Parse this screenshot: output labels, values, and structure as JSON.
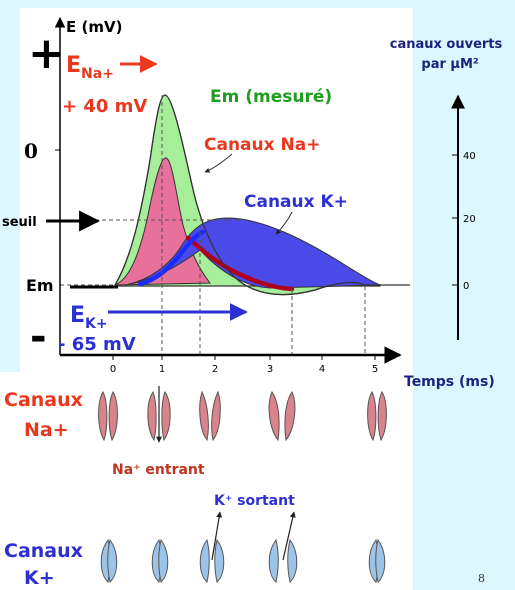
{
  "colors": {
    "background": "#dcf7fd",
    "na_label": "#e8391f",
    "k_label": "#2c2fd1",
    "em_label": "#1f9d1f",
    "na_area": "#e7719b",
    "k_area": "#4a4ae8",
    "em_area": "#a6ee9a",
    "na_channel": "#d9848d",
    "k_channel": "#9cc4e8"
  },
  "left_axis": {
    "title": "E (mV)",
    "plus_sign": "+",
    "minus_sign": "-",
    "zero_label": "0"
  },
  "labels": {
    "e_na_main": "E",
    "e_na_sub": "Na+",
    "plus_40": "+ 40 mV",
    "em_mesure": "Em (mesuré)",
    "canaux_na": "Canaux Na+",
    "canaux_k": "Canaux K+",
    "seuil": "seuil",
    "em": "Em",
    "e_k_main": "E",
    "e_k_sub": "K+",
    "minus_65": "- 65 mV"
  },
  "right_axis": {
    "title_line1": "canaux ouverts",
    "title_line2": "par µM²",
    "ticks": [
      "40",
      "20",
      "0"
    ]
  },
  "time_axis": {
    "title": "Temps (ms)",
    "ticks": [
      "0",
      "1",
      "2",
      "3",
      "4",
      "5"
    ]
  },
  "channels": {
    "na_row_label_line1": "Canaux",
    "na_row_label_line2": "Na+",
    "k_row_label_line1": "Canaux",
    "k_row_label_line2": "K+",
    "na_entrant": "Na⁺ entrant",
    "k_sortant": "K⁺ sortant"
  },
  "slide_number": "8"
}
